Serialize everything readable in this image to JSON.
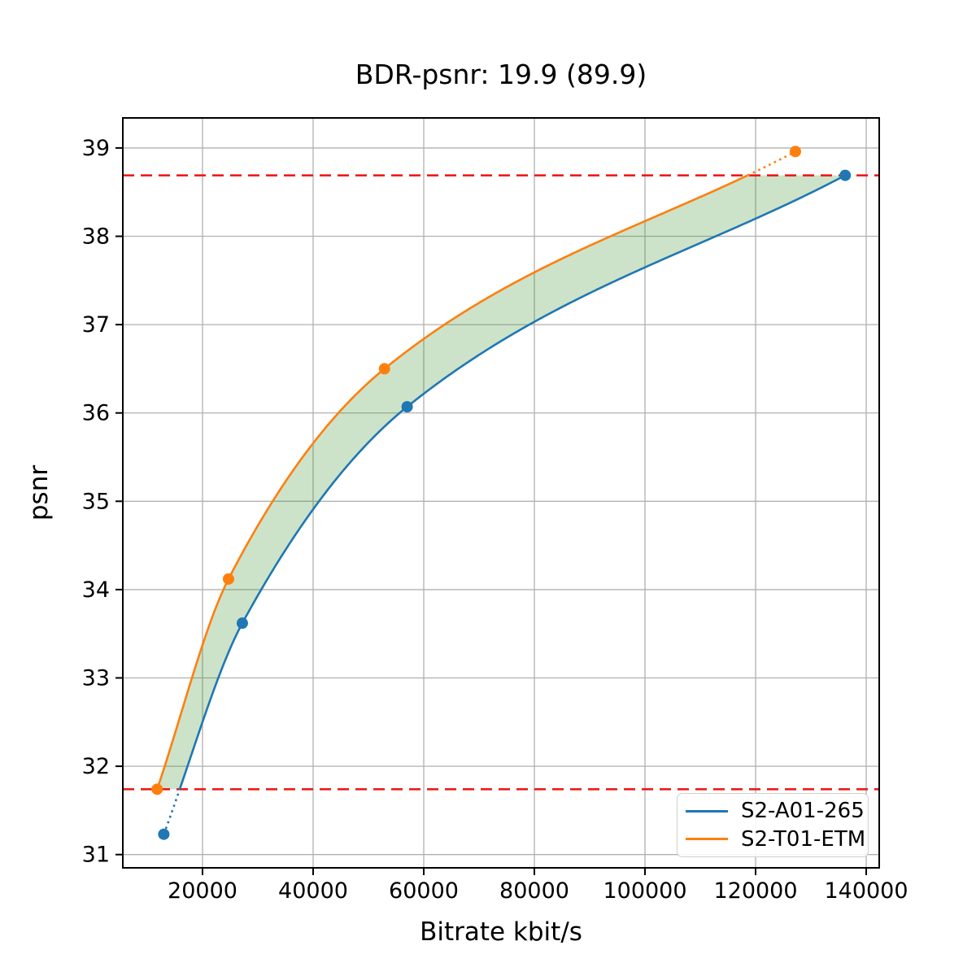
{
  "title": "BDR-psnr: 19.9 (89.9)",
  "chart_data": {
    "type": "line",
    "title": "BDR-psnr: 19.9 (89.9)",
    "xlabel": "Bitrate kbit/s",
    "ylabel": "psnr",
    "xlim": [
      5590,
      142350
    ],
    "ylim": [
      30.85,
      39.34
    ],
    "x_ticks": [
      20000,
      40000,
      60000,
      80000,
      100000,
      120000,
      140000
    ],
    "y_ticks": [
      31,
      32,
      33,
      34,
      35,
      36,
      37,
      38,
      39
    ],
    "grid": true,
    "grid_color": "#b0b0b0",
    "legend_position": "lower right",
    "series": [
      {
        "name": "S2-A01-265",
        "color": "#1f77b4",
        "marker": "circle",
        "x": [
          13000,
          27200,
          57000,
          136200
        ],
        "y": [
          31.23,
          33.62,
          36.07,
          38.69
        ]
      },
      {
        "name": "S2-T01-ETM",
        "color": "#ff7f0e",
        "marker": "circle",
        "x": [
          11800,
          24700,
          52900,
          127200
        ],
        "y": [
          31.74,
          34.12,
          36.5,
          38.96
        ]
      }
    ],
    "bd_bound_lines": {
      "color": "#ee1111",
      "style": "dashed",
      "lower_psnr": 31.74,
      "upper_psnr": 38.69
    },
    "shaded_region": {
      "color": "#3c912d",
      "alpha": 0.26,
      "description": "area between the two rate-distortion curves inside the BD psnr bounds"
    },
    "bdr_value": 19.9,
    "bdr_secondary_value": 89.9
  },
  "legend": {
    "entries": [
      {
        "label": "S2-A01-265",
        "color": "#1f77b4"
      },
      {
        "label": "S2-T01-ETM",
        "color": "#ff7f0e"
      }
    ]
  }
}
